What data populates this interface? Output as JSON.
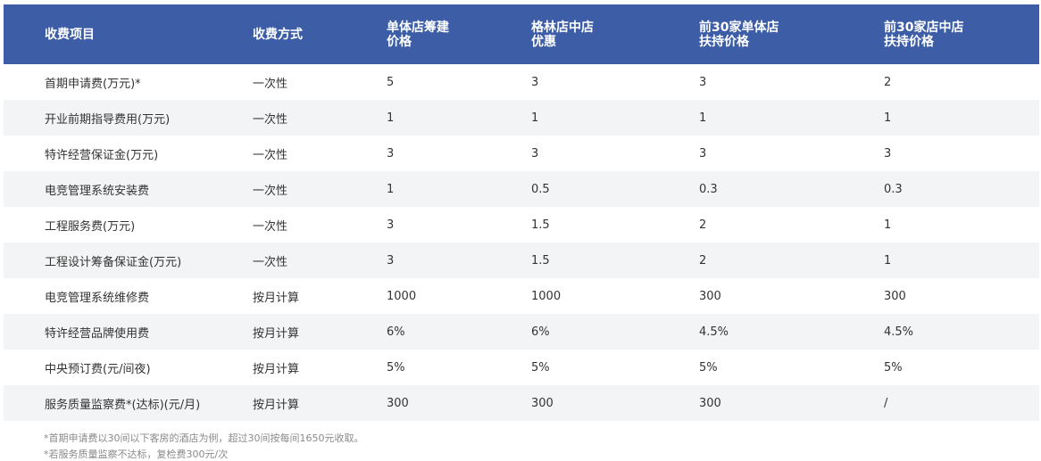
{
  "table": {
    "headers": [
      "收费项目",
      "收费方式",
      "单体店筹建\n价格",
      "格林店中店\n优惠",
      "前30家单体店\n扶持价格",
      "前30家店中店\n扶持价格"
    ],
    "rows": [
      [
        "首期申请费(万元)*",
        "一次性",
        "5",
        "3",
        "3",
        "2"
      ],
      [
        "开业前期指导费用(万元)",
        "一次性",
        "1",
        "1",
        "1",
        "1"
      ],
      [
        "特许经营保证金(万元)",
        "一次性",
        "3",
        "3",
        "3",
        "3"
      ],
      [
        "电竞管理系统安装费",
        "一次性",
        "1",
        "0.5",
        "0.3",
        "0.3"
      ],
      [
        "工程服务费(万元)",
        "一次性",
        "3",
        "1.5",
        "2",
        "1"
      ],
      [
        "工程设计筹备保证金(万元)",
        "一次性",
        "3",
        "1.5",
        "2",
        "1"
      ],
      [
        "电竞管理系统维修费",
        "按月计算",
        "1000",
        "1000",
        "300",
        "300"
      ],
      [
        "特许经营品牌使用费",
        "按月计算",
        "6%",
        "6%",
        "4.5%",
        "4.5%"
      ],
      [
        "中央预订费(元/间夜)",
        "按月计算",
        "5%",
        "5%",
        "5%",
        "5%"
      ],
      [
        "服务质量监察费*(达标)(元/月)",
        "按月计算",
        "300",
        "300",
        "300",
        "/"
      ]
    ]
  },
  "notes": [
    "*首期申请费以30间以下客房的酒店为例，超过30间按每间1650元收取。",
    "*若服务质量监察不达标，复检费300元/次"
  ]
}
